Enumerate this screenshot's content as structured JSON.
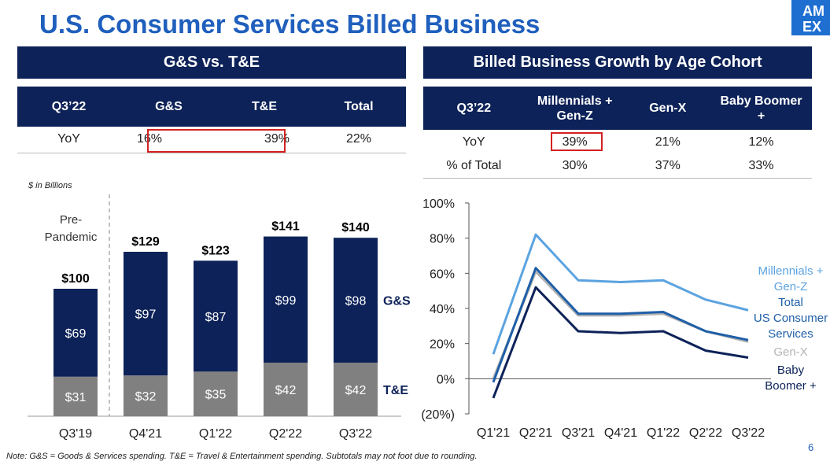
{
  "title": "U.S. Consumer Services Billed Business",
  "logo_text": "AMEX",
  "table_left": {
    "header": "G&S vs. T&E",
    "columns": [
      "Q3’22",
      "G&S",
      "T&E",
      "Total"
    ],
    "row": [
      "YoY",
      "16%",
      "39%",
      "22%"
    ]
  },
  "table_right": {
    "header": "Billed Business Growth by Age Cohort",
    "columns": [
      "Q3’22",
      "Millennials + Gen-Z",
      "Gen-X",
      "Baby Boomer +"
    ],
    "rows": [
      [
        "YoY",
        "39%",
        "21%",
        "12%"
      ],
      [
        "% of Total",
        "30%",
        "37%",
        "33%"
      ]
    ]
  },
  "unit_note": "$ in Billions",
  "footnote": "Note: G&S = Goods & Services spending. T&E = Travel & Entertainment spending. Subtotals may not foot due to rounding.",
  "page_number": "6",
  "colors": {
    "navy": "#0d2258",
    "gray": "#808080",
    "blue_title": "#1f5fbd",
    "light_blue": "#5ba3e0",
    "mid_blue": "#1f5fa8",
    "light_gray": "#b3b3b3",
    "red_box": "#d32222"
  },
  "chart_data": [
    {
      "type": "bar",
      "stacked": true,
      "categories": [
        "Q3'19",
        "Q4'21",
        "Q1'22",
        "Q2'22",
        "Q3'22"
      ],
      "series": [
        {
          "name": "T&E",
          "values": [
            31,
            32,
            35,
            42,
            42
          ],
          "value_labels": [
            "$31",
            "$32",
            "$35",
            "$42",
            "$42"
          ],
          "color": "#808080"
        },
        {
          "name": "G&S",
          "values": [
            69,
            97,
            87,
            99,
            98
          ],
          "value_labels": [
            "$69",
            "$97",
            "$87",
            "$99",
            "$98"
          ],
          "color": "#0d2258"
        }
      ],
      "totals": [
        100,
        129,
        123,
        141,
        140
      ],
      "total_labels": [
        "$100",
        "$129",
        "$123",
        "$141",
        "$140"
      ],
      "annotation": "Pre-Pandemic",
      "ylim": [
        0,
        150
      ]
    },
    {
      "type": "line",
      "categories": [
        "Q1'21",
        "Q2'21",
        "Q3'21",
        "Q4'21",
        "Q1'22",
        "Q2'22",
        "Q3'22"
      ],
      "y_ticks": [
        "100%",
        "80%",
        "60%",
        "40%",
        "20%",
        "0%",
        "(20%)"
      ],
      "ylim": [
        -20,
        100
      ],
      "series": [
        {
          "name": "Millennials + Gen-Z",
          "values": [
            14,
            82,
            56,
            55,
            56,
            45,
            39
          ],
          "color": "#5ba3e0"
        },
        {
          "name": "Total US Consumer Services",
          "values": [
            -2,
            63,
            37,
            37,
            38,
            27,
            22
          ],
          "color": "#1f5fa8"
        },
        {
          "name": "Gen-X",
          "values": [
            0,
            61,
            36,
            36,
            37,
            27,
            21
          ],
          "color": "#b3b3b3"
        },
        {
          "name": "Baby Boomer +",
          "values": [
            -11,
            52,
            27,
            26,
            27,
            16,
            12
          ],
          "color": "#0d2258"
        }
      ]
    }
  ]
}
